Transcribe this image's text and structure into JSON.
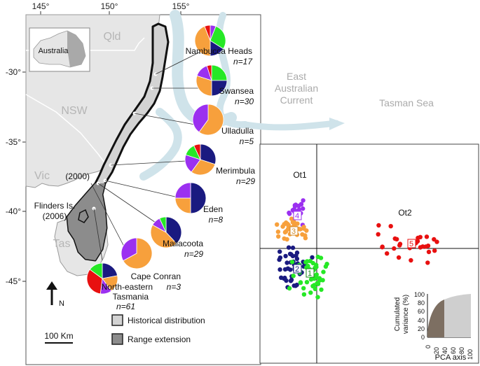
{
  "map": {
    "lon_ticks": [
      "145°",
      "150°",
      "155°"
    ],
    "lat_ticks": [
      "-30°",
      "-35°",
      "-40°",
      "-45°"
    ],
    "regions": {
      "qld": "Qld",
      "nsw": "NSW",
      "vic": "Vic",
      "tas": "Tas",
      "australia": "Australia",
      "current_line1": "East",
      "current_line2": "Australian",
      "current_line3": "Current",
      "tasman": "Tasman Sea"
    },
    "year_2000": "(2000)",
    "flinders_line1": "Flinders Is.",
    "flinders_line2": "(2006)",
    "north_label": "N",
    "scale_label": "100 Km",
    "legend": {
      "historical": "Historical distribution",
      "extension": "Range extension"
    },
    "colors": {
      "purple": "#9b30f0",
      "orange": "#f7a03c",
      "navy": "#1a1a80",
      "green": "#26e826",
      "red": "#e81010",
      "land": "#e6e6e6",
      "range": "#999999",
      "current": "#cfe3ea"
    },
    "sites": [
      {
        "name": "Nambucca Heads",
        "n": "n=17",
        "slices": [
          {
            "c": "purple",
            "v": 0.06
          },
          {
            "c": "green",
            "v": 0.28
          },
          {
            "c": "navy",
            "v": 0.16
          },
          {
            "c": "orange",
            "v": 0.44
          },
          {
            "c": "red",
            "v": 0.06
          }
        ]
      },
      {
        "name": "Swansea",
        "n": "n=30",
        "slices": [
          {
            "c": "green",
            "v": 0.25
          },
          {
            "c": "navy",
            "v": 0.25
          },
          {
            "c": "orange",
            "v": 0.3
          },
          {
            "c": "purple",
            "v": 0.15
          },
          {
            "c": "red",
            "v": 0.05
          }
        ]
      },
      {
        "name": "Ulladulla",
        "n": "n=5",
        "slices": [
          {
            "c": "orange",
            "v": 0.6
          },
          {
            "c": "purple",
            "v": 0.4
          }
        ]
      },
      {
        "name": "Merimbula",
        "n": "n=29",
        "slices": [
          {
            "c": "navy",
            "v": 0.3
          },
          {
            "c": "orange",
            "v": 0.3
          },
          {
            "c": "purple",
            "v": 0.2
          },
          {
            "c": "green",
            "v": 0.13
          },
          {
            "c": "red",
            "v": 0.07
          }
        ]
      },
      {
        "name": "Eden",
        "n": "n=8",
        "slices": [
          {
            "c": "navy",
            "v": 0.5
          },
          {
            "c": "orange",
            "v": 0.25
          },
          {
            "c": "purple",
            "v": 0.25
          }
        ]
      },
      {
        "name": "Mallacoota",
        "n": "n=29",
        "slices": [
          {
            "c": "navy",
            "v": 0.38
          },
          {
            "c": "orange",
            "v": 0.45
          },
          {
            "c": "purple",
            "v": 0.1
          },
          {
            "c": "green",
            "v": 0.07
          }
        ]
      },
      {
        "name": "Cape Conran",
        "n": "n=3",
        "slices": [
          {
            "c": "orange",
            "v": 0.67
          },
          {
            "c": "purple",
            "v": 0.33
          }
        ]
      },
      {
        "name": "North-eastern Tasmania",
        "n": "n=61",
        "slices": [
          {
            "c": "navy",
            "v": 0.22
          },
          {
            "c": "orange",
            "v": 0.18
          },
          {
            "c": "purple",
            "v": 0.12
          },
          {
            "c": "red",
            "v": 0.33
          },
          {
            "c": "green",
            "v": 0.15
          }
        ]
      }
    ]
  },
  "pca": {
    "ot1": "Ot1",
    "ot2": "Ot2",
    "cluster_numbers": [
      "1",
      "2",
      "3",
      "4",
      "5"
    ],
    "inset": {
      "ylabel_line1": "Cumulated",
      "ylabel_line2": "variance (%)",
      "xlabel": "PCA axis",
      "yticks": [
        "0",
        "20",
        "40",
        "60",
        "80",
        "100"
      ],
      "xticks": [
        "0",
        "20",
        "40",
        "60",
        "80",
        "100"
      ]
    }
  }
}
